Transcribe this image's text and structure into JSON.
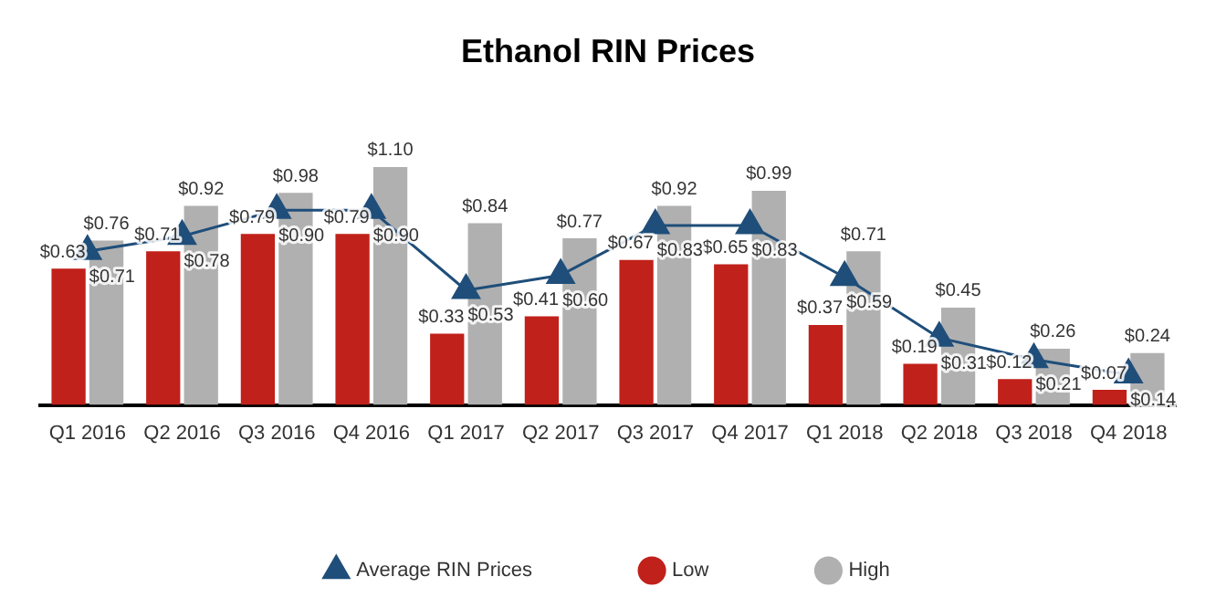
{
  "chart_data": {
    "type": "bar",
    "title": "Ethanol RIN Prices",
    "categories": [
      "Q1 2016",
      "Q2 2016",
      "Q3 2016",
      "Q4 2016",
      "Q1 2017",
      "Q2 2017",
      "Q3 2017",
      "Q4 2017",
      "Q1 2018",
      "Q2 2018",
      "Q3 2018",
      "Q4 2018"
    ],
    "series": [
      {
        "name": "Low",
        "color": "#c0211a",
        "values": [
          0.63,
          0.71,
          0.79,
          0.79,
          0.33,
          0.41,
          0.67,
          0.65,
          0.37,
          0.19,
          0.12,
          0.07
        ],
        "value_labels": [
          "$0.63",
          "$0.71",
          "$0.79",
          "$0.79",
          "$0.33",
          "$0.41",
          "$0.67",
          "$0.65",
          "$0.37",
          "$0.19",
          "$0.12",
          "$0.07"
        ]
      },
      {
        "name": "High",
        "color": "#b0b0b0",
        "values": [
          0.76,
          0.92,
          0.98,
          1.1,
          0.84,
          0.77,
          0.92,
          0.99,
          0.71,
          0.45,
          0.26,
          0.24
        ],
        "value_labels": [
          "$0.76",
          "$0.92",
          "$0.98",
          "$1.10",
          "$0.84",
          "$0.77",
          "$0.92",
          "$0.99",
          "$0.71",
          "$0.45",
          "$0.26",
          "$0.24"
        ]
      },
      {
        "name": "Average RIN Prices",
        "type": "line",
        "color": "#1f4e7a",
        "marker": "triangle",
        "values": [
          0.71,
          0.78,
          0.9,
          0.9,
          0.53,
          0.6,
          0.83,
          0.83,
          0.59,
          0.31,
          0.21,
          0.14
        ],
        "value_labels": [
          "$0.71",
          "$0.78",
          "$0.90",
          "$0.90",
          "$0.53",
          "$0.60",
          "$0.83",
          "$0.83",
          "$0.59",
          "$0.31",
          "$0.21",
          "$0.14"
        ]
      }
    ],
    "legend": "bottom",
    "grid": false,
    "tick_labels": "x"
  }
}
